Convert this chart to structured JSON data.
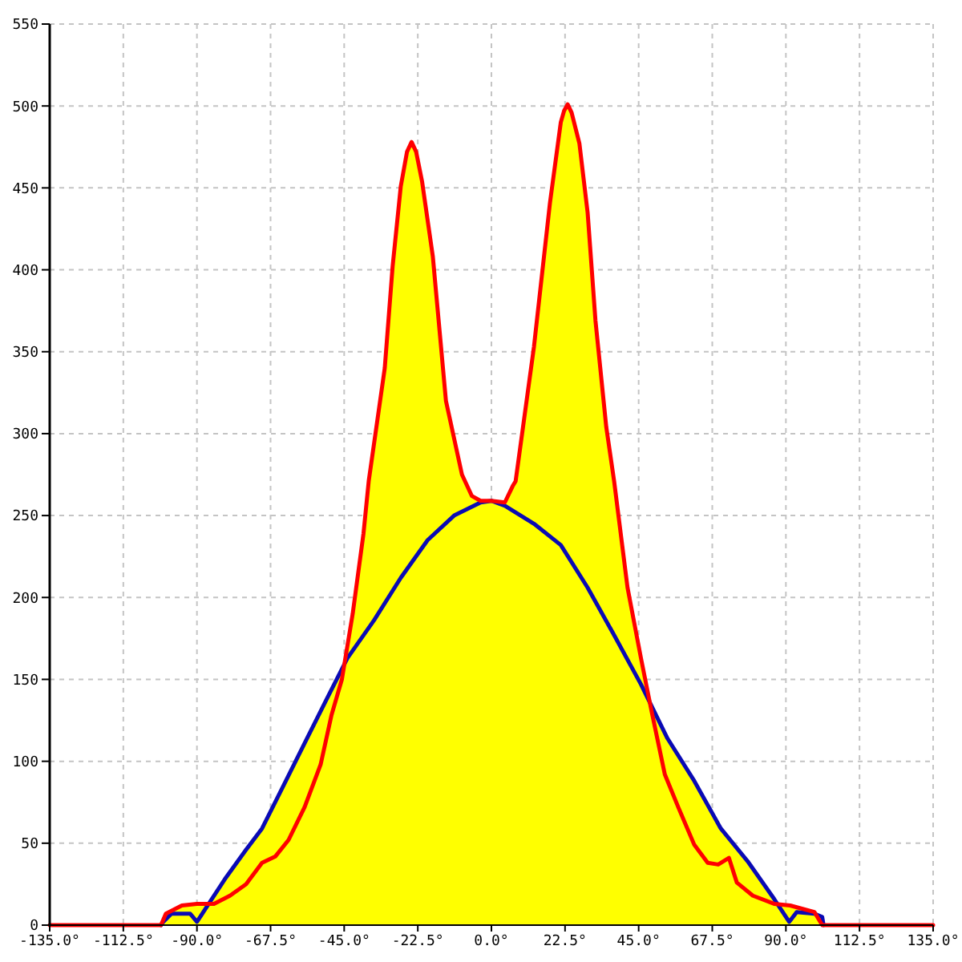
{
  "chart_data": {
    "type": "line",
    "xlim": [
      -135,
      135
    ],
    "xticks": [
      {
        "value": -135,
        "label": "-135.0°"
      },
      {
        "value": -112.5,
        "label": "-112.5°"
      },
      {
        "value": -90,
        "label": "-90.0°"
      },
      {
        "value": -67.5,
        "label": "-67.5°"
      },
      {
        "value": -45,
        "label": "-45.0°"
      },
      {
        "value": -22.5,
        "label": "-22.5°"
      },
      {
        "value": 0,
        "label": "0.0°"
      },
      {
        "value": 22.5,
        "label": "22.5°"
      },
      {
        "value": 45,
        "label": "45.0°"
      },
      {
        "value": 67.5,
        "label": "67.5°"
      },
      {
        "value": 90,
        "label": "90.0°"
      },
      {
        "value": 112.5,
        "label": "112.5°"
      },
      {
        "value": 135,
        "label": "135.0°"
      }
    ],
    "ylim": [
      0,
      550
    ],
    "yticks": [
      0,
      50,
      100,
      150,
      200,
      250,
      300,
      350,
      400,
      450,
      500,
      550
    ],
    "grid": true,
    "line_style": "solid",
    "series": [
      {
        "type": "area",
        "color": "#ffff00",
        "x": [
          -101,
          -99.5,
          -94.6,
          -90,
          -86.4,
          -81.5,
          -75,
          -70.1,
          -63.6,
          -57.1,
          -50.6,
          -44.9,
          -42.4,
          -39.1,
          -37.5,
          -32.6,
          -30.2,
          -27.7,
          -25.8,
          -24.4,
          -23,
          -21.2,
          -17.9,
          -13.9,
          -9,
          -6,
          -3.3,
          0,
          4.1,
          6.5,
          7.4,
          13,
          17.9,
          21.2,
          22.2,
          23.3,
          24.5,
          26.9,
          29.4,
          31.8,
          35.1,
          37.5,
          41.6,
          45.7,
          48.4,
          53.8,
          62,
          70.1,
          78.3,
          86.4,
          87.5,
          91.3,
          98.7,
          101.1
        ],
        "values": [
          0,
          7,
          12,
          13,
          13,
          28,
          46,
          59,
          85,
          111,
          137,
          160,
          190,
          239,
          271,
          340,
          402,
          451,
          472,
          478,
          472,
          454,
          408,
          320,
          275,
          262,
          259,
          259,
          258,
          268,
          271,
          353,
          441,
          490,
          497,
          501,
          496,
          477,
          435,
          369,
          304,
          271,
          206,
          163,
          137,
          114,
          88,
          59,
          39,
          16,
          13,
          12,
          8,
          0
        ]
      },
      {
        "color": "#0a0ab4",
        "x": [
          -101,
          -100.3,
          -97.8,
          -92.1,
          -90,
          -86.4,
          -81.5,
          -75,
          -70.1,
          -63.6,
          -57.1,
          -50.6,
          -44,
          -35.9,
          -27.7,
          -19.5,
          -11.4,
          -3.3,
          0,
          4.1,
          13,
          21.2,
          29.4,
          37.5,
          45.7,
          53.8,
          62,
          70.1,
          78.3,
          86.4,
          91,
          93.3,
          98.7,
          101.1,
          101.5
        ],
        "values": [
          0,
          2,
          7,
          7,
          2,
          13,
          28,
          46,
          59,
          85,
          111,
          137,
          163,
          186,
          212,
          235,
          250,
          258,
          259,
          256,
          245,
          232,
          206,
          177,
          147,
          114,
          88,
          59,
          39,
          16,
          2,
          8,
          7,
          5,
          0
        ]
      },
      {
        "color": "#ff0000",
        "x": [
          -135,
          -101,
          -99.5,
          -94.6,
          -90,
          -84.8,
          -79.9,
          -75,
          -70.1,
          -66,
          -62,
          -57.1,
          -52.2,
          -48.9,
          -45.7,
          -42.4,
          -39.1,
          -37.5,
          -32.6,
          -30.2,
          -27.7,
          -25.8,
          -24.4,
          -23,
          -21.2,
          -17.9,
          -13.9,
          -9,
          -6,
          -3.3,
          0,
          4.1,
          6.5,
          7.4,
          13,
          17.9,
          21.2,
          22.2,
          23.3,
          24.5,
          26.9,
          29.4,
          31.8,
          35.1,
          37.5,
          41.6,
          45.7,
          48.9,
          53,
          57.1,
          62,
          66.1,
          69.3,
          72.6,
          75,
          79.9,
          86.4,
          91.3,
          98.7,
          101.1,
          135
        ],
        "values": [
          0,
          0,
          7,
          12,
          13,
          13,
          18,
          25,
          38,
          42,
          52,
          72,
          98,
          128,
          150,
          190,
          239,
          271,
          340,
          402,
          451,
          472,
          478,
          472,
          454,
          408,
          320,
          275,
          262,
          259,
          259,
          258,
          268,
          271,
          353,
          441,
          490,
          497,
          501,
          496,
          477,
          435,
          369,
          304,
          271,
          206,
          163,
          131,
          92,
          72,
          49,
          38,
          37,
          41,
          26,
          18,
          13,
          12,
          8,
          0,
          0
        ]
      }
    ]
  }
}
